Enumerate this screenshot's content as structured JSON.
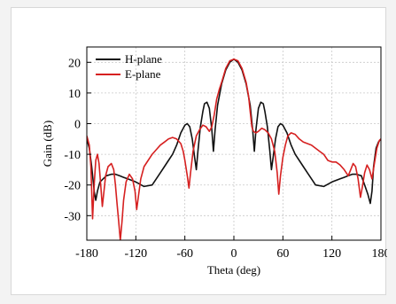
{
  "chart_data": {
    "type": "line",
    "title": "",
    "xlabel": "Theta (deg)",
    "ylabel": "Gain (dB)",
    "xlim": [
      -180,
      180
    ],
    "ylim": [
      -38,
      25
    ],
    "xticks": [
      -180,
      -120,
      -60,
      0,
      60,
      120,
      180
    ],
    "yticks": [
      -30,
      -20,
      -10,
      0,
      10,
      20
    ],
    "grid": true,
    "legend": "top-left",
    "series": [
      {
        "name": "H-plane",
        "color": "#111111",
        "points": [
          [
            -180,
            -5
          ],
          [
            -177,
            -8
          ],
          [
            -174,
            -14
          ],
          [
            -171,
            -22
          ],
          [
            -169,
            -25
          ],
          [
            -167,
            -22
          ],
          [
            -164,
            -19
          ],
          [
            -160,
            -18
          ],
          [
            -156,
            -17
          ],
          [
            -150,
            -16.5
          ],
          [
            -145,
            -16.5
          ],
          [
            -140,
            -17
          ],
          [
            -135,
            -17.5
          ],
          [
            -130,
            -18
          ],
          [
            -125,
            -18.5
          ],
          [
            -120,
            -19
          ],
          [
            -110,
            -20.5
          ],
          [
            -100,
            -20
          ],
          [
            -95,
            -18
          ],
          [
            -90,
            -16
          ],
          [
            -85,
            -14
          ],
          [
            -80,
            -12
          ],
          [
            -75,
            -10
          ],
          [
            -70,
            -7
          ],
          [
            -65,
            -3
          ],
          [
            -60,
            -0.5
          ],
          [
            -57,
            0
          ],
          [
            -54,
            -1
          ],
          [
            -51,
            -5
          ],
          [
            -48,
            -11
          ],
          [
            -46,
            -15
          ],
          [
            -44,
            -9
          ],
          [
            -41,
            -1
          ],
          [
            -38,
            4
          ],
          [
            -36,
            6.5
          ],
          [
            -33,
            7
          ],
          [
            -30,
            5
          ],
          [
            -27,
            -2
          ],
          [
            -25,
            -9
          ],
          [
            -23,
            -2
          ],
          [
            -20,
            6
          ],
          [
            -15,
            13
          ],
          [
            -10,
            17.5
          ],
          [
            -5,
            20
          ],
          [
            0,
            21
          ],
          [
            5,
            20
          ],
          [
            10,
            17.5
          ],
          [
            15,
            13
          ],
          [
            20,
            6
          ],
          [
            23,
            -2
          ],
          [
            25,
            -9
          ],
          [
            27,
            -2
          ],
          [
            30,
            5
          ],
          [
            33,
            7
          ],
          [
            36,
            6.5
          ],
          [
            38,
            4
          ],
          [
            41,
            -1
          ],
          [
            44,
            -9
          ],
          [
            46,
            -15
          ],
          [
            48,
            -11
          ],
          [
            51,
            -5
          ],
          [
            54,
            -1
          ],
          [
            57,
            0
          ],
          [
            60,
            -0.5
          ],
          [
            65,
            -3
          ],
          [
            70,
            -7
          ],
          [
            75,
            -10
          ],
          [
            80,
            -12
          ],
          [
            85,
            -14
          ],
          [
            90,
            -16
          ],
          [
            95,
            -18
          ],
          [
            100,
            -20
          ],
          [
            110,
            -20.5
          ],
          [
            120,
            -19
          ],
          [
            125,
            -18.5
          ],
          [
            130,
            -18
          ],
          [
            135,
            -17.5
          ],
          [
            140,
            -17
          ],
          [
            145,
            -16.5
          ],
          [
            150,
            -16.5
          ],
          [
            156,
            -17
          ],
          [
            160,
            -20
          ],
          [
            164,
            -23
          ],
          [
            167,
            -26
          ],
          [
            169,
            -22
          ],
          [
            171,
            -14
          ],
          [
            174,
            -8
          ],
          [
            177,
            -6
          ],
          [
            180,
            -5
          ]
        ]
      },
      {
        "name": "E-plane",
        "color": "#d62020",
        "points": [
          [
            -180,
            -4
          ],
          [
            -177,
            -7
          ],
          [
            -175,
            -14
          ],
          [
            -173,
            -31
          ],
          [
            -171,
            -20
          ],
          [
            -169,
            -12
          ],
          [
            -167,
            -10
          ],
          [
            -165,
            -13
          ],
          [
            -163,
            -20
          ],
          [
            -161,
            -27
          ],
          [
            -159,
            -22
          ],
          [
            -157,
            -17
          ],
          [
            -154,
            -14
          ],
          [
            -150,
            -13
          ],
          [
            -147,
            -15
          ],
          [
            -145,
            -20
          ],
          [
            -143,
            -26
          ],
          [
            -141,
            -32
          ],
          [
            -139,
            -38
          ],
          [
            -137,
            -32
          ],
          [
            -135,
            -25
          ],
          [
            -132,
            -19
          ],
          [
            -128,
            -16.5
          ],
          [
            -124,
            -18
          ],
          [
            -121,
            -22
          ],
          [
            -119,
            -28
          ],
          [
            -117,
            -24
          ],
          [
            -114,
            -18
          ],
          [
            -110,
            -14
          ],
          [
            -105,
            -12
          ],
          [
            -100,
            -10
          ],
          [
            -95,
            -8.5
          ],
          [
            -90,
            -7
          ],
          [
            -85,
            -6
          ],
          [
            -80,
            -5
          ],
          [
            -75,
            -4.5
          ],
          [
            -70,
            -5
          ],
          [
            -65,
            -6.5
          ],
          [
            -62,
            -9
          ],
          [
            -60,
            -12
          ],
          [
            -57,
            -17
          ],
          [
            -55,
            -21
          ],
          [
            -53,
            -16
          ],
          [
            -50,
            -9
          ],
          [
            -46,
            -4
          ],
          [
            -42,
            -2
          ],
          [
            -38,
            -0.5
          ],
          [
            -34,
            -1
          ],
          [
            -30,
            -2.5
          ],
          [
            -27,
            -1
          ],
          [
            -24,
            3
          ],
          [
            -21,
            8
          ],
          [
            -18,
            11
          ],
          [
            -15,
            13.5
          ],
          [
            -10,
            18
          ],
          [
            -5,
            20.5
          ],
          [
            0,
            21
          ],
          [
            5,
            20.5
          ],
          [
            10,
            18
          ],
          [
            15,
            13.5
          ],
          [
            18,
            9
          ],
          [
            20,
            4
          ],
          [
            22,
            -1
          ],
          [
            24,
            -2.5
          ],
          [
            27,
            -3
          ],
          [
            30,
            -2.5
          ],
          [
            34,
            -1.5
          ],
          [
            38,
            -2
          ],
          [
            42,
            -3
          ],
          [
            46,
            -5
          ],
          [
            50,
            -9
          ],
          [
            53,
            -16
          ],
          [
            55,
            -23
          ],
          [
            57,
            -17
          ],
          [
            60,
            -11
          ],
          [
            63,
            -7
          ],
          [
            66,
            -4
          ],
          [
            70,
            -3
          ],
          [
            75,
            -3.5
          ],
          [
            80,
            -5
          ],
          [
            85,
            -6
          ],
          [
            90,
            -6.5
          ],
          [
            95,
            -7
          ],
          [
            100,
            -8
          ],
          [
            105,
            -9
          ],
          [
            110,
            -10
          ],
          [
            115,
            -12
          ],
          [
            120,
            -12.5
          ],
          [
            125,
            -12.5
          ],
          [
            130,
            -13.5
          ],
          [
            135,
            -15
          ],
          [
            140,
            -17
          ],
          [
            143,
            -15
          ],
          [
            146,
            -13
          ],
          [
            149,
            -14
          ],
          [
            152,
            -18
          ],
          [
            155,
            -24
          ],
          [
            157,
            -21
          ],
          [
            160,
            -16
          ],
          [
            163,
            -13.5
          ],
          [
            166,
            -15
          ],
          [
            169,
            -18
          ],
          [
            172,
            -13
          ],
          [
            175,
            -8
          ],
          [
            178,
            -5.5
          ],
          [
            180,
            -5
          ]
        ]
      }
    ]
  }
}
